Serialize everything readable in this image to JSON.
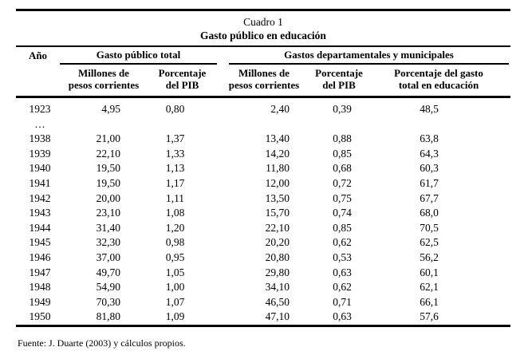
{
  "title": {
    "line1": "Cuadro 1",
    "line2": "Gasto público en educación"
  },
  "colors": {
    "text": "#000000",
    "background": "#ffffff",
    "rules": "#000000"
  },
  "table": {
    "year_header": "Año",
    "groups": [
      {
        "label": "Gasto público total",
        "subcolumns": [
          {
            "line1": "Millones de",
            "line2": "pesos corrientes"
          },
          {
            "line1": "Porcentaje",
            "line2": "del PIB"
          }
        ]
      },
      {
        "label": "Gastos departamentales y municipales",
        "subcolumns": [
          {
            "line1": "Millones de",
            "line2": "pesos corrientes"
          },
          {
            "line1": "Porcentaje",
            "line2": "del PIB"
          },
          {
            "line1": "Porcentaje del gasto",
            "line2": "total en educación"
          }
        ]
      }
    ],
    "rows": [
      {
        "year": "1923",
        "gt_millones": "4,95",
        "gt_pib": "0,80",
        "dm_millones": "2,40",
        "dm_pib": "0,39",
        "pct_gasto_educacion": "48,5"
      },
      {
        "year": "…",
        "gt_millones": "",
        "gt_pib": "",
        "dm_millones": "",
        "dm_pib": "",
        "pct_gasto_educacion": ""
      },
      {
        "year": "1938",
        "gt_millones": "21,00",
        "gt_pib": "1,37",
        "dm_millones": "13,40",
        "dm_pib": "0,88",
        "pct_gasto_educacion": "63,8"
      },
      {
        "year": "1939",
        "gt_millones": "22,10",
        "gt_pib": "1,33",
        "dm_millones": "14,20",
        "dm_pib": "0,85",
        "pct_gasto_educacion": "64,3"
      },
      {
        "year": "1940",
        "gt_millones": "19,50",
        "gt_pib": "1,13",
        "dm_millones": "11,80",
        "dm_pib": "0,68",
        "pct_gasto_educacion": "60,3"
      },
      {
        "year": "1941",
        "gt_millones": "19,50",
        "gt_pib": "1,17",
        "dm_millones": "12,00",
        "dm_pib": "0,72",
        "pct_gasto_educacion": "61,7"
      },
      {
        "year": "1942",
        "gt_millones": "20,00",
        "gt_pib": "1,11",
        "dm_millones": "13,50",
        "dm_pib": "0,75",
        "pct_gasto_educacion": "67,7"
      },
      {
        "year": "1943",
        "gt_millones": "23,10",
        "gt_pib": "1,08",
        "dm_millones": "15,70",
        "dm_pib": "0,74",
        "pct_gasto_educacion": "68,0"
      },
      {
        "year": "1944",
        "gt_millones": "31,40",
        "gt_pib": "1,20",
        "dm_millones": "22,10",
        "dm_pib": "0,85",
        "pct_gasto_educacion": "70,5"
      },
      {
        "year": "1945",
        "gt_millones": "32,30",
        "gt_pib": "0,98",
        "dm_millones": "20,20",
        "dm_pib": "0,62",
        "pct_gasto_educacion": "62,5"
      },
      {
        "year": "1946",
        "gt_millones": "37,00",
        "gt_pib": "0,95",
        "dm_millones": "20,80",
        "dm_pib": "0,53",
        "pct_gasto_educacion": "56,2"
      },
      {
        "year": "1947",
        "gt_millones": "49,70",
        "gt_pib": "1,05",
        "dm_millones": "29,80",
        "dm_pib": "0,63",
        "pct_gasto_educacion": "60,1"
      },
      {
        "year": "1948",
        "gt_millones": "54,90",
        "gt_pib": "1,00",
        "dm_millones": "34,10",
        "dm_pib": "0,62",
        "pct_gasto_educacion": "62,1"
      },
      {
        "year": "1949",
        "gt_millones": "70,30",
        "gt_pib": "1,07",
        "dm_millones": "46,50",
        "dm_pib": "0,71",
        "pct_gasto_educacion": "66,1"
      },
      {
        "year": "1950",
        "gt_millones": "81,80",
        "gt_pib": "1,09",
        "dm_millones": "47,10",
        "dm_pib": "0,63",
        "pct_gasto_educacion": "57,6"
      }
    ]
  },
  "footer": {
    "source": "Fuente: J. Duarte (2003) y cálculos propios."
  }
}
